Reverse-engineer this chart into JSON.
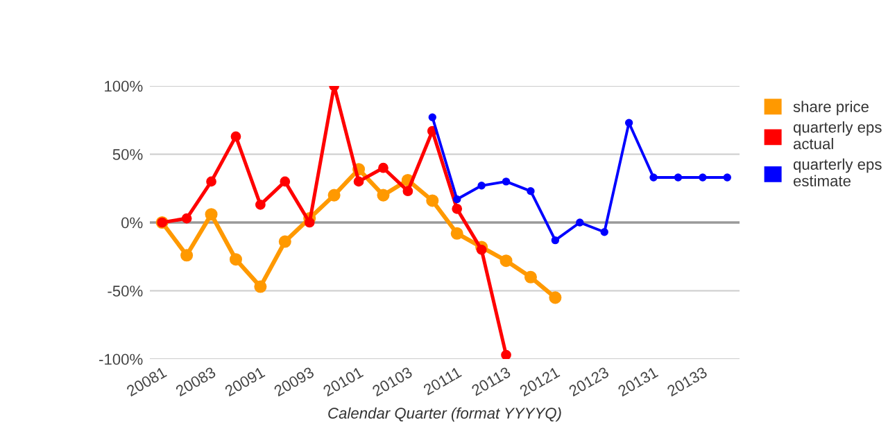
{
  "chart_data": {
    "type": "line",
    "xlabel": "Calendar Quarter (format YYYYQ)",
    "categories": [
      "20081",
      null,
      "20083",
      null,
      "20091",
      null,
      "20093",
      null,
      "20101",
      null,
      "20103",
      null,
      "20111",
      null,
      "20113",
      null,
      "20121",
      null,
      "20123",
      null,
      "20131",
      null,
      "20133",
      null
    ],
    "series": [
      {
        "name": "share price",
        "color": "#ff9900",
        "values": [
          0,
          -24,
          6,
          -27,
          -47,
          -14,
          3,
          20,
          39,
          20,
          31,
          16,
          -8,
          -18,
          -28,
          -40,
          -55,
          null,
          null,
          null,
          null,
          null,
          null,
          null
        ]
      },
      {
        "name": "quarterly eps actual",
        "color": "#ff0000",
        "values": [
          0,
          3,
          30,
          63,
          13,
          30,
          0,
          100,
          30,
          40,
          23,
          67,
          10,
          -20,
          -97,
          null,
          null,
          null,
          null,
          null,
          null,
          null,
          null,
          null
        ]
      },
      {
        "name": "quarterly eps estimate",
        "color": "#0000ff",
        "values": [
          null,
          null,
          null,
          null,
          null,
          null,
          null,
          null,
          null,
          null,
          null,
          77,
          17,
          27,
          30,
          23,
          -13,
          0,
          -7,
          73,
          33,
          33,
          33,
          33
        ]
      }
    ],
    "ylim": [
      -100,
      100
    ],
    "yticks": [
      {
        "value": -100,
        "label": "-100%"
      },
      {
        "value": -50,
        "label": "-50%"
      },
      {
        "value": 0,
        "label": "0%"
      },
      {
        "value": 50,
        "label": "50%"
      },
      {
        "value": 100,
        "label": "100%"
      }
    ],
    "grid": "y",
    "legend": "right",
    "marker": "circle",
    "line_style": "solid"
  }
}
